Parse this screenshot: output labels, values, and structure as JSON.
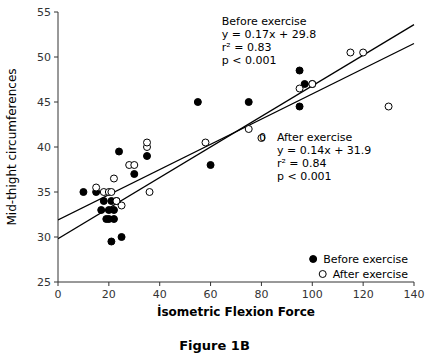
{
  "chart_data": {
    "type": "scatter",
    "xlabel": "İsometric Flexion Force",
    "ylabel": "Mid-thight circumferences",
    "caption": "Figure 1B",
    "series": [
      {
        "name": "Before exercise",
        "type": "scatter",
        "marker": "circle",
        "color": "#000000",
        "x": [
          10,
          15,
          17,
          18,
          19,
          20,
          20,
          21,
          21,
          22,
          22,
          23,
          24,
          25,
          30,
          35,
          55,
          60,
          75,
          95,
          95,
          97,
          100
        ],
        "values": [
          35,
          35,
          33,
          34,
          32,
          33,
          32,
          29.5,
          34,
          33,
          32,
          34,
          39.5,
          30,
          37,
          39,
          45,
          38,
          45,
          48.5,
          44.5,
          47,
          47
        ]
      },
      {
        "name": "After exercise",
        "type": "scatter",
        "marker": "open-circle",
        "color": "#000000",
        "x": [
          15,
          18,
          20,
          21,
          22,
          23,
          25,
          28,
          30,
          35,
          35,
          36,
          58,
          75,
          80,
          95,
          100,
          115,
          120,
          130
        ],
        "values": [
          35.5,
          35,
          35,
          35,
          36.5,
          34,
          33.5,
          38,
          38,
          40,
          40.5,
          35,
          40.5,
          42,
          41,
          46.5,
          47,
          50.5,
          50.5,
          44.5
        ]
      },
      {
        "type": "line",
        "color": "#000000",
        "x": [
          0,
          140
        ],
        "values": [
          29.8,
          53.6
        ]
      },
      {
        "type": "line",
        "color": "#000000",
        "x": [
          0,
          140
        ],
        "values": [
          31.9,
          51.5
        ]
      }
    ],
    "annotations": [
      {
        "text": [
          "Before exercise",
          "y = 0.17x + 29.8",
          "r² = 0.83",
          "p < 0.001"
        ]
      },
      {
        "text": [
          "O"
        ]
      },
      {
        "text": [
          "After exercise",
          "y = 0.14x + 31.9",
          "r² = 0.84",
          "p < 0.001"
        ]
      }
    ],
    "xlim": [
      0,
      140
    ],
    "ylim": [
      25,
      55
    ],
    "xticks": [
      0,
      20,
      40,
      60,
      80,
      100,
      120,
      140
    ],
    "yticks": [
      25,
      30,
      35,
      40,
      45,
      50,
      55
    ],
    "legend": "lower right",
    "grid": false
  }
}
